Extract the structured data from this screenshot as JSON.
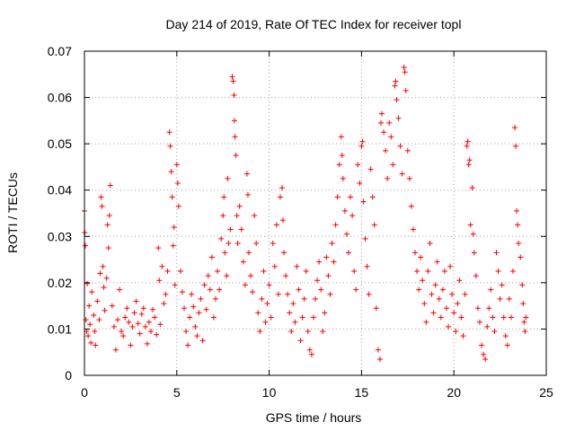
{
  "chart_data": {
    "type": "scatter",
    "title": "Day 214 of 2019, Rate Of TEC Index for receiver topl",
    "xlabel": "GPS time / hours",
    "ylabel": "ROTI / TECUs",
    "xlim": [
      0,
      25
    ],
    "ylim": [
      0,
      0.07
    ],
    "x_ticks": [
      0,
      5,
      10,
      15,
      20,
      25
    ],
    "y_ticks": [
      0,
      0.01,
      0.02,
      0.03,
      0.04,
      0.05,
      0.06,
      0.07
    ],
    "x_tick_labels": [
      "0",
      "5",
      "10",
      "15",
      "20",
      "25"
    ],
    "y_tick_labels": [
      "0",
      "0.01",
      "0.02",
      "0.03",
      "0.04",
      "0.05",
      "0.06",
      "0.07"
    ],
    "grid": true,
    "marker": "+",
    "color": "#ff0000",
    "series": [
      {
        "name": "ROTI",
        "points": [
          [
            0.0,
            0.0355
          ],
          [
            0.02,
            0.0308
          ],
          [
            0.05,
            0.028
          ],
          [
            0.08,
            0.012
          ],
          [
            0.12,
            0.0095
          ],
          [
            0.15,
            0.0198
          ],
          [
            0.2,
            0.0085
          ],
          [
            0.25,
            0.015
          ],
          [
            0.3,
            0.011
          ],
          [
            0.35,
            0.007
          ],
          [
            0.4,
            0.018
          ],
          [
            0.5,
            0.013
          ],
          [
            0.55,
            0.0095
          ],
          [
            0.6,
            0.0065
          ],
          [
            0.7,
            0.016
          ],
          [
            0.8,
            0.012
          ],
          [
            0.85,
            0.022
          ],
          [
            0.9,
            0.0385
          ],
          [
            0.95,
            0.0365
          ],
          [
            1.0,
            0.0235
          ],
          [
            1.05,
            0.019
          ],
          [
            1.1,
            0.014
          ],
          [
            1.2,
            0.021
          ],
          [
            1.25,
            0.0325
          ],
          [
            1.3,
            0.0275
          ],
          [
            1.35,
            0.0345
          ],
          [
            1.4,
            0.041
          ],
          [
            1.5,
            0.015
          ],
          [
            1.6,
            0.0105
          ],
          [
            1.7,
            0.0055
          ],
          [
            1.8,
            0.012
          ],
          [
            1.9,
            0.0185
          ],
          [
            2.0,
            0.0095
          ],
          [
            2.1,
            0.0085
          ],
          [
            2.2,
            0.0125
          ],
          [
            2.3,
            0.0145
          ],
          [
            2.4,
            0.0115
          ],
          [
            2.5,
            0.0065
          ],
          [
            2.6,
            0.0105
          ],
          [
            2.7,
            0.0135
          ],
          [
            2.8,
            0.016
          ],
          [
            2.9,
            0.0112
          ],
          [
            3.0,
            0.009
          ],
          [
            3.1,
            0.0132
          ],
          [
            3.2,
            0.0145
          ],
          [
            3.3,
            0.0105
          ],
          [
            3.4,
            0.0068
          ],
          [
            3.5,
            0.0115
          ],
          [
            3.6,
            0.0095
          ],
          [
            3.7,
            0.0142
          ],
          [
            3.8,
            0.0125
          ],
          [
            3.9,
            0.0088
          ],
          [
            4.0,
            0.0275
          ],
          [
            4.05,
            0.0205
          ],
          [
            4.1,
            0.011
          ],
          [
            4.2,
            0.0235
          ],
          [
            4.3,
            0.0155
          ],
          [
            4.4,
            0.0175
          ],
          [
            4.5,
            0.0225
          ],
          [
            4.6,
            0.0525
          ],
          [
            4.65,
            0.0495
          ],
          [
            4.7,
            0.044
          ],
          [
            4.75,
            0.0385
          ],
          [
            4.8,
            0.028
          ],
          [
            4.85,
            0.032
          ],
          [
            4.9,
            0.0195
          ],
          [
            5.0,
            0.0455
          ],
          [
            5.05,
            0.0415
          ],
          [
            5.1,
            0.0365
          ],
          [
            5.2,
            0.0225
          ],
          [
            5.3,
            0.018
          ],
          [
            5.4,
            0.0145
          ],
          [
            5.5,
            0.0095
          ],
          [
            5.6,
            0.0065
          ],
          [
            5.7,
            0.0125
          ],
          [
            5.8,
            0.0175
          ],
          [
            5.9,
            0.0148
          ],
          [
            6.0,
            0.0105
          ],
          [
            6.1,
            0.0085
          ],
          [
            6.2,
            0.0135
          ],
          [
            6.3,
            0.0165
          ],
          [
            6.4,
            0.0075
          ],
          [
            6.5,
            0.0195
          ],
          [
            6.6,
            0.0142
          ],
          [
            6.7,
            0.0215
          ],
          [
            6.8,
            0.0185
          ],
          [
            6.9,
            0.0255
          ],
          [
            7.0,
            0.0125
          ],
          [
            7.1,
            0.0165
          ],
          [
            7.2,
            0.0225
          ],
          [
            7.3,
            0.0185
          ],
          [
            7.4,
            0.0295
          ],
          [
            7.5,
            0.0345
          ],
          [
            7.55,
            0.0385
          ],
          [
            7.6,
            0.0265
          ],
          [
            7.7,
            0.0215
          ],
          [
            7.75,
            0.0425
          ],
          [
            7.8,
            0.0285
          ],
          [
            7.9,
            0.0315
          ],
          [
            8.0,
            0.0645
          ],
          [
            8.05,
            0.0635
          ],
          [
            8.1,
            0.0605
          ],
          [
            8.12,
            0.055
          ],
          [
            8.15,
            0.0515
          ],
          [
            8.2,
            0.0475
          ],
          [
            8.25,
            0.0345
          ],
          [
            8.3,
            0.0285
          ],
          [
            8.4,
            0.0365
          ],
          [
            8.5,
            0.0315
          ],
          [
            8.6,
            0.0245
          ],
          [
            8.7,
            0.0195
          ],
          [
            8.8,
            0.0435
          ],
          [
            8.85,
            0.039
          ],
          [
            8.9,
            0.0265
          ],
          [
            9.0,
            0.0215
          ],
          [
            9.1,
            0.018
          ],
          [
            9.2,
            0.0345
          ],
          [
            9.3,
            0.0285
          ],
          [
            9.4,
            0.0135
          ],
          [
            9.5,
            0.0095
          ],
          [
            9.6,
            0.0165
          ],
          [
            9.7,
            0.0225
          ],
          [
            9.8,
            0.0115
          ],
          [
            9.9,
            0.0155
          ],
          [
            10.0,
            0.0195
          ],
          [
            10.1,
            0.0125
          ],
          [
            10.2,
            0.0285
          ],
          [
            10.3,
            0.0235
          ],
          [
            10.4,
            0.0325
          ],
          [
            10.5,
            0.0175
          ],
          [
            10.6,
            0.0385
          ],
          [
            10.7,
            0.0405
          ],
          [
            10.75,
            0.0335
          ],
          [
            10.8,
            0.0265
          ],
          [
            10.9,
            0.0215
          ],
          [
            11.0,
            0.0175
          ],
          [
            11.1,
            0.0135
          ],
          [
            11.2,
            0.0095
          ],
          [
            11.3,
            0.0155
          ],
          [
            11.4,
            0.0115
          ],
          [
            11.5,
            0.0235
          ],
          [
            11.6,
            0.0185
          ],
          [
            11.7,
            0.0075
          ],
          [
            11.8,
            0.0125
          ],
          [
            11.9,
            0.0165
          ],
          [
            12.0,
            0.0225
          ],
          [
            12.1,
            0.0095
          ],
          [
            12.2,
            0.0055
          ],
          [
            12.3,
            0.0045
          ],
          [
            12.4,
            0.0125
          ],
          [
            12.5,
            0.0165
          ],
          [
            12.6,
            0.0205
          ],
          [
            12.7,
            0.0245
          ],
          [
            12.8,
            0.0185
          ],
          [
            12.9,
            0.0095
          ],
          [
            13.0,
            0.0135
          ],
          [
            13.1,
            0.0255
          ],
          [
            13.2,
            0.0215
          ],
          [
            13.3,
            0.0175
          ],
          [
            13.4,
            0.0285
          ],
          [
            13.5,
            0.0245
          ],
          [
            13.6,
            0.0325
          ],
          [
            13.7,
            0.0385
          ],
          [
            13.8,
            0.0455
          ],
          [
            13.9,
            0.0515
          ],
          [
            13.95,
            0.0475
          ],
          [
            14.0,
            0.0425
          ],
          [
            14.1,
            0.0355
          ],
          [
            14.2,
            0.0305
          ],
          [
            14.3,
            0.0265
          ],
          [
            14.4,
            0.0385
          ],
          [
            14.5,
            0.0345
          ],
          [
            14.6,
            0.0225
          ],
          [
            14.7,
            0.0185
          ],
          [
            14.8,
            0.0455
          ],
          [
            14.9,
            0.0415
          ],
          [
            15.0,
            0.0495
          ],
          [
            15.05,
            0.0505
          ],
          [
            15.1,
            0.0375
          ],
          [
            15.2,
            0.0295
          ],
          [
            15.3,
            0.0235
          ],
          [
            15.4,
            0.0175
          ],
          [
            15.5,
            0.0445
          ],
          [
            15.6,
            0.0385
          ],
          [
            15.7,
            0.0325
          ],
          [
            15.8,
            0.0145
          ],
          [
            15.9,
            0.0055
          ],
          [
            16.0,
            0.0035
          ],
          [
            16.05,
            0.0545
          ],
          [
            16.1,
            0.0565
          ],
          [
            16.2,
            0.0525
          ],
          [
            16.3,
            0.0485
          ],
          [
            16.4,
            0.0425
          ],
          [
            16.5,
            0.0545
          ],
          [
            16.6,
            0.0515
          ],
          [
            16.7,
            0.0455
          ],
          [
            16.8,
            0.0625
          ],
          [
            16.85,
            0.0635
          ],
          [
            16.9,
            0.0595
          ],
          [
            17.0,
            0.0555
          ],
          [
            17.1,
            0.0495
          ],
          [
            17.2,
            0.0435
          ],
          [
            17.3,
            0.0665
          ],
          [
            17.35,
            0.0655
          ],
          [
            17.4,
            0.0615
          ],
          [
            17.5,
            0.0485
          ],
          [
            17.6,
            0.0425
          ],
          [
            17.7,
            0.0365
          ],
          [
            17.8,
            0.0315
          ],
          [
            17.9,
            0.0265
          ],
          [
            18.0,
            0.0225
          ],
          [
            18.1,
            0.0185
          ],
          [
            18.2,
            0.0255
          ],
          [
            18.3,
            0.0205
          ],
          [
            18.4,
            0.0155
          ],
          [
            18.5,
            0.0115
          ],
          [
            18.6,
            0.0225
          ],
          [
            18.7,
            0.0285
          ],
          [
            18.8,
            0.0175
          ],
          [
            18.9,
            0.0135
          ],
          [
            19.0,
            0.0195
          ],
          [
            19.1,
            0.0245
          ],
          [
            19.2,
            0.0165
          ],
          [
            19.3,
            0.0125
          ],
          [
            19.4,
            0.0185
          ],
          [
            19.5,
            0.0225
          ],
          [
            19.6,
            0.0145
          ],
          [
            19.7,
            0.0105
          ],
          [
            19.8,
            0.0235
          ],
          [
            19.9,
            0.0175
          ],
          [
            20.0,
            0.0135
          ],
          [
            20.1,
            0.0095
          ],
          [
            20.2,
            0.0155
          ],
          [
            20.3,
            0.0205
          ],
          [
            20.4,
            0.0125
          ],
          [
            20.5,
            0.0085
          ],
          [
            20.6,
            0.0175
          ],
          [
            20.7,
            0.0495
          ],
          [
            20.75,
            0.0505
          ],
          [
            20.8,
            0.0455
          ],
          [
            20.85,
            0.0465
          ],
          [
            20.9,
            0.0325
          ],
          [
            21.0,
            0.0405
          ],
          [
            21.05,
            0.0305
          ],
          [
            21.1,
            0.0265
          ],
          [
            21.2,
            0.0215
          ],
          [
            21.3,
            0.0145
          ],
          [
            21.4,
            0.0115
          ],
          [
            21.5,
            0.0065
          ],
          [
            21.6,
            0.0045
          ],
          [
            21.7,
            0.0035
          ],
          [
            21.8,
            0.0105
          ],
          [
            21.9,
            0.0145
          ],
          [
            22.0,
            0.0185
          ],
          [
            22.1,
            0.0125
          ],
          [
            22.2,
            0.0095
          ],
          [
            22.3,
            0.0265
          ],
          [
            22.4,
            0.0225
          ],
          [
            22.5,
            0.0165
          ],
          [
            22.6,
            0.0195
          ],
          [
            22.7,
            0.0125
          ],
          [
            22.8,
            0.0085
          ],
          [
            22.9,
            0.0065
          ],
          [
            23.0,
            0.0165
          ],
          [
            23.1,
            0.0125
          ],
          [
            23.2,
            0.0225
          ],
          [
            23.3,
            0.0535
          ],
          [
            23.35,
            0.0495
          ],
          [
            23.4,
            0.0355
          ],
          [
            23.45,
            0.0325
          ],
          [
            23.5,
            0.0285
          ],
          [
            23.6,
            0.0255
          ],
          [
            23.7,
            0.0195
          ],
          [
            23.75,
            0.0155
          ],
          [
            23.8,
            0.0115
          ],
          [
            23.85,
            0.0095
          ],
          [
            23.9,
            0.0125
          ]
        ]
      }
    ]
  }
}
